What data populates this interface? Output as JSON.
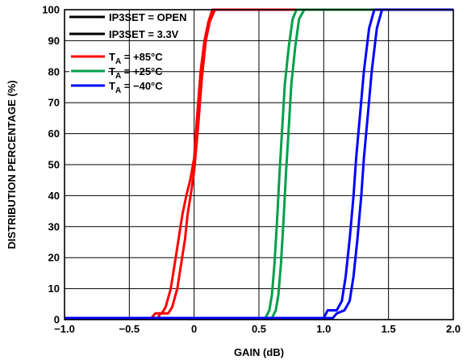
{
  "chart_data": {
    "type": "line",
    "xlabel": "GAIN (dB)",
    "ylabel": "DISTRIBUTION PERCENTAGE (%)",
    "xlim": [
      -1.0,
      2.0
    ],
    "ylim": [
      0,
      100
    ],
    "x_ticks": [
      "−1.0",
      "−0.5",
      "0",
      "0.5",
      "1.0",
      "1.5",
      "2.0"
    ],
    "y_ticks": [
      "0",
      "10",
      "20",
      "30",
      "40",
      "50",
      "60",
      "70",
      "80",
      "90",
      "100"
    ],
    "grid": true,
    "legend_placement": "top-left",
    "legend": [
      {
        "text": "IP3SET = OPEN",
        "color": "#000000"
      },
      {
        "text": "IP3SET = 3.3V",
        "color": "#000000"
      },
      {
        "prefix": "T",
        "sub": "A",
        "suffix": " = +85°C",
        "color": "#ff0000"
      },
      {
        "prefix": "T",
        "sub": "A",
        "suffix": " = +25°C",
        "color": "#00a04a"
      },
      {
        "prefix": "T",
        "sub": "A",
        "suffix": " = −40°C",
        "color": "#0000ff"
      }
    ],
    "series": [
      {
        "color": "#ff0000",
        "points": [
          [
            -1.0,
            0.5
          ],
          [
            -0.33,
            0.5
          ],
          [
            -0.3,
            2
          ],
          [
            -0.25,
            2
          ],
          [
            -0.22,
            4
          ],
          [
            -0.18,
            10
          ],
          [
            -0.15,
            18
          ],
          [
            -0.12,
            26
          ],
          [
            -0.09,
            34
          ],
          [
            -0.06,
            40
          ],
          [
            -0.03,
            45
          ],
          [
            0.0,
            52
          ],
          [
            0.02,
            64
          ],
          [
            0.05,
            80
          ],
          [
            0.08,
            90
          ],
          [
            0.11,
            96
          ],
          [
            0.14,
            100
          ],
          [
            2.0,
            100
          ]
        ]
      },
      {
        "color": "#ff0000",
        "points": [
          [
            -1.0,
            0.5
          ],
          [
            -0.28,
            0.5
          ],
          [
            -0.26,
            2
          ],
          [
            -0.2,
            2
          ],
          [
            -0.17,
            4
          ],
          [
            -0.13,
            10
          ],
          [
            -0.1,
            18
          ],
          [
            -0.07,
            26
          ],
          [
            -0.05,
            34
          ],
          [
            -0.02,
            42
          ],
          [
            0.0,
            48
          ],
          [
            0.03,
            62
          ],
          [
            0.06,
            78
          ],
          [
            0.09,
            90
          ],
          [
            0.12,
            96
          ],
          [
            0.16,
            100
          ],
          [
            2.0,
            100
          ]
        ]
      },
      {
        "color": "#00a04a",
        "points": [
          [
            -1.0,
            0.5
          ],
          [
            0.55,
            0.5
          ],
          [
            0.58,
            3
          ],
          [
            0.6,
            8
          ],
          [
            0.62,
            18
          ],
          [
            0.64,
            32
          ],
          [
            0.66,
            48
          ],
          [
            0.68,
            62
          ],
          [
            0.7,
            76
          ],
          [
            0.73,
            88
          ],
          [
            0.76,
            97
          ],
          [
            0.79,
            100
          ],
          [
            2.0,
            100
          ]
        ]
      },
      {
        "color": "#00a04a",
        "points": [
          [
            -1.0,
            0.5
          ],
          [
            0.6,
            0.5
          ],
          [
            0.63,
            3
          ],
          [
            0.65,
            8
          ],
          [
            0.67,
            18
          ],
          [
            0.69,
            32
          ],
          [
            0.71,
            48
          ],
          [
            0.73,
            62
          ],
          [
            0.75,
            76
          ],
          [
            0.78,
            88
          ],
          [
            0.81,
            97
          ],
          [
            0.85,
            100
          ],
          [
            2.0,
            100
          ]
        ]
      },
      {
        "color": "#0000ff",
        "points": [
          [
            -1.0,
            0.5
          ],
          [
            1.0,
            0.5
          ],
          [
            1.03,
            3
          ],
          [
            1.1,
            3
          ],
          [
            1.14,
            6
          ],
          [
            1.17,
            14
          ],
          [
            1.2,
            26
          ],
          [
            1.23,
            40
          ],
          [
            1.25,
            52
          ],
          [
            1.28,
            66
          ],
          [
            1.31,
            80
          ],
          [
            1.35,
            94
          ],
          [
            1.39,
            100
          ],
          [
            2.0,
            100
          ]
        ]
      },
      {
        "color": "#0000ff",
        "points": [
          [
            -1.0,
            0.5
          ],
          [
            1.07,
            0.5
          ],
          [
            1.1,
            2
          ],
          [
            1.16,
            3
          ],
          [
            1.2,
            6
          ],
          [
            1.23,
            14
          ],
          [
            1.26,
            26
          ],
          [
            1.29,
            40
          ],
          [
            1.31,
            52
          ],
          [
            1.34,
            66
          ],
          [
            1.37,
            80
          ],
          [
            1.41,
            94
          ],
          [
            1.45,
            100
          ],
          [
            2.0,
            100
          ]
        ]
      }
    ]
  }
}
